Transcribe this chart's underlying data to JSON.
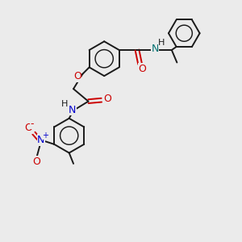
{
  "bg_color": "#ebebeb",
  "bond_color": "#1a1a1a",
  "O_color": "#cc0000",
  "N_teal_color": "#007070",
  "N_blue_color": "#0000cc",
  "figure_size": [
    3.0,
    3.0
  ],
  "dpi": 100,
  "xlim": [
    0,
    10
  ],
  "ylim": [
    0,
    10
  ]
}
